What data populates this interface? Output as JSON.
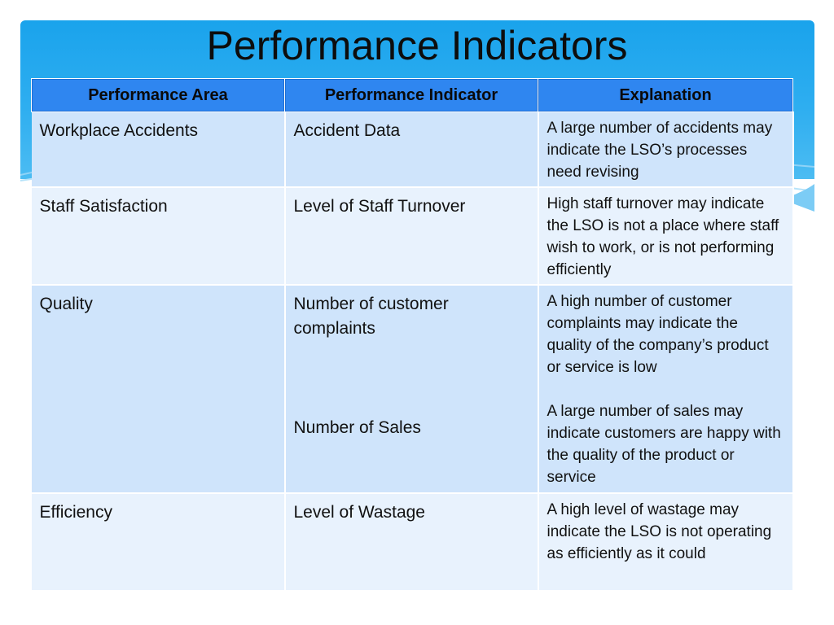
{
  "slide": {
    "title": "Performance Indicators"
  },
  "table": {
    "headers": [
      "Performance Area",
      "Performance Indicator",
      "Explanation"
    ],
    "rows": [
      {
        "area": "Workplace Accidents",
        "indicator": "Accident Data",
        "explanation": "A large number of accidents may indicate the LSO’s processes need revising"
      },
      {
        "area": "Staff Satisfaction",
        "indicator": "Level of Staff Turnover",
        "explanation": "High staff turnover may indicate the LSO is not a place where staff wish to work, or is not performing efficiently"
      },
      {
        "area": "Quality",
        "indicator": "Number of customer complaints",
        "indicator_2": "Number of Sales",
        "explanation": "A high number of customer complaints may indicate the quality of the company’s product or service is low",
        "explanation_2": "A large number of sales may indicate customers are happy with the quality of the product or service"
      },
      {
        "area": "Efficiency",
        "indicator": "Level of Wastage",
        "explanation": "A high level of wastage may indicate the LSO is not operating as efficiently as it could"
      }
    ]
  },
  "colors": {
    "banner": "#1aa3ec",
    "header": "#2f86f0",
    "row_odd": "#cfe4fb",
    "row_even": "#e8f2fd"
  }
}
